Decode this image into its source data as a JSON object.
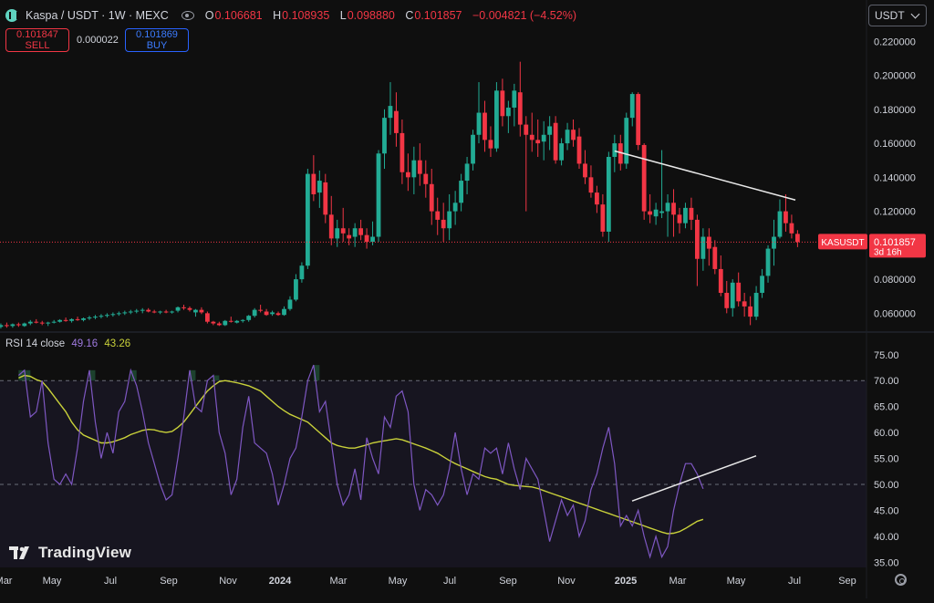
{
  "header": {
    "symbol_line": "Kaspa / USDT · 1W · MEXC",
    "ohlc": [
      {
        "k": "O",
        "v": "0.106681"
      },
      {
        "k": "H",
        "v": "0.108935"
      },
      {
        "k": "L",
        "v": "0.098880"
      },
      {
        "k": "C",
        "v": "0.101857"
      },
      {
        "k": "",
        "v": "−0.004821 (−4.52%)"
      }
    ]
  },
  "trade": {
    "sell_price": "0.101847",
    "sell_label": "SELL",
    "spread": "0.000022",
    "buy_price": "0.101869",
    "buy_label": "BUY"
  },
  "currency": {
    "label": "USDT"
  },
  "branding": "TradingView",
  "rsi_legend": {
    "name": "RSI 14 close",
    "value1": "49.16",
    "value2": "43.26"
  },
  "colors": {
    "up": "#22ab94",
    "down": "#f23645",
    "rsi": "#7e57c2",
    "rsi_ma": "#c9d13a",
    "price_line": "#f23645"
  },
  "chart_data": [
    {
      "type": "candlestick",
      "title": "Kaspa / USDT · 1W · MEXC",
      "y_axis": {
        "ticks": [
          "0.220000",
          "0.200000",
          "0.180000",
          "0.160000",
          "0.140000",
          "0.120000",
          "0.100000",
          "0.080000",
          "0.060000"
        ],
        "range": [
          0.05,
          0.225
        ],
        "scale": "linear",
        "side": "right"
      },
      "x_axis": {
        "ticks": [
          "Mar",
          "May",
          "Jul",
          "Sep",
          "Nov",
          "2024",
          "Mar",
          "May",
          "Jul",
          "Sep",
          "Nov",
          "2025",
          "Mar",
          "May",
          "Jul",
          "Sep"
        ]
      },
      "last_price": {
        "symbol": "KASUSDT",
        "value": "0.101857",
        "countdown": "3d 16h",
        "numeric": 0.101857
      },
      "candles_ohlc": [
        [
          0.0535,
          0.0555,
          0.0525,
          0.0545
        ],
        [
          0.0548,
          0.0555,
          0.05,
          0.052
        ],
        [
          0.052,
          0.054,
          0.051,
          0.053
        ],
        [
          0.053,
          0.0545,
          0.0515,
          0.0525
        ],
        [
          0.0525,
          0.054,
          0.0515,
          0.0535
        ],
        [
          0.0535,
          0.0545,
          0.052,
          0.053
        ],
        [
          0.0525,
          0.0545,
          0.052,
          0.054
        ],
        [
          0.054,
          0.056,
          0.053,
          0.055
        ],
        [
          0.055,
          0.0565,
          0.054,
          0.0545
        ],
        [
          0.0545,
          0.0555,
          0.053,
          0.054
        ],
        [
          0.054,
          0.055,
          0.0525,
          0.0545
        ],
        [
          0.0545,
          0.056,
          0.054,
          0.055
        ],
        [
          0.055,
          0.0565,
          0.0545,
          0.056
        ],
        [
          0.056,
          0.0575,
          0.055,
          0.0555
        ],
        [
          0.0555,
          0.057,
          0.0545,
          0.0565
        ],
        [
          0.0565,
          0.058,
          0.0555,
          0.056
        ],
        [
          0.056,
          0.0575,
          0.0552,
          0.057
        ],
        [
          0.057,
          0.0585,
          0.056,
          0.0575
        ],
        [
          0.0575,
          0.059,
          0.0565,
          0.058
        ],
        [
          0.058,
          0.0595,
          0.057,
          0.0585
        ],
        [
          0.0585,
          0.06,
          0.0575,
          0.059
        ],
        [
          0.059,
          0.0605,
          0.058,
          0.0595
        ],
        [
          0.0595,
          0.061,
          0.0585,
          0.06
        ],
        [
          0.06,
          0.0615,
          0.059,
          0.0605
        ],
        [
          0.0605,
          0.062,
          0.0595,
          0.061
        ],
        [
          0.061,
          0.0625,
          0.06,
          0.0615
        ],
        [
          0.0615,
          0.063,
          0.06,
          0.062
        ],
        [
          0.062,
          0.063,
          0.0605,
          0.061
        ],
        [
          0.061,
          0.062,
          0.06,
          0.0605
        ],
        [
          0.0605,
          0.0615,
          0.0595,
          0.061
        ],
        [
          0.061,
          0.062,
          0.06,
          0.0605
        ],
        [
          0.0605,
          0.0615,
          0.0598,
          0.061
        ],
        [
          0.0615,
          0.064,
          0.0605,
          0.0635
        ],
        [
          0.0635,
          0.065,
          0.062,
          0.063
        ],
        [
          0.063,
          0.064,
          0.061,
          0.062
        ],
        [
          0.0605,
          0.0625,
          0.058,
          0.062
        ],
        [
          0.062,
          0.0635,
          0.0595,
          0.0605
        ],
        [
          0.06,
          0.061,
          0.054,
          0.055
        ],
        [
          0.055,
          0.0555,
          0.053,
          0.054
        ],
        [
          0.054,
          0.055,
          0.0525,
          0.053
        ],
        [
          0.053,
          0.056,
          0.0525,
          0.0555
        ],
        [
          0.0555,
          0.058,
          0.0545,
          0.055
        ],
        [
          0.0545,
          0.056,
          0.054,
          0.0555
        ],
        [
          0.0555,
          0.0565,
          0.0545,
          0.056
        ],
        [
          0.056,
          0.059,
          0.055,
          0.0585
        ],
        [
          0.0585,
          0.063,
          0.0575,
          0.062
        ],
        [
          0.062,
          0.065,
          0.0605,
          0.0615
        ],
        [
          0.061,
          0.0625,
          0.0585,
          0.059
        ],
        [
          0.0595,
          0.0615,
          0.0585,
          0.0605
        ],
        [
          0.06,
          0.061,
          0.0585,
          0.059
        ],
        [
          0.059,
          0.064,
          0.0585,
          0.0625
        ],
        [
          0.0625,
          0.07,
          0.0615,
          0.068
        ],
        [
          0.068,
          0.083,
          0.067,
          0.08
        ],
        [
          0.08,
          0.09,
          0.078,
          0.088
        ],
        [
          0.088,
          0.145,
          0.086,
          0.142
        ],
        [
          0.142,
          0.153,
          0.126,
          0.13
        ],
        [
          0.131,
          0.144,
          0.122,
          0.138
        ],
        [
          0.137,
          0.142,
          0.113,
          0.118
        ],
        [
          0.118,
          0.129,
          0.1,
          0.104
        ],
        [
          0.104,
          0.115,
          0.099,
          0.11
        ],
        [
          0.11,
          0.122,
          0.102,
          0.107
        ],
        [
          0.106,
          0.11,
          0.1,
          0.104
        ],
        [
          0.105,
          0.113,
          0.099,
          0.11
        ],
        [
          0.11,
          0.115,
          0.103,
          0.106
        ],
        [
          0.106,
          0.11,
          0.098,
          0.102
        ],
        [
          0.102,
          0.114,
          0.1,
          0.105
        ],
        [
          0.105,
          0.156,
          0.102,
          0.154
        ],
        [
          0.154,
          0.18,
          0.145,
          0.175
        ],
        [
          0.175,
          0.196,
          0.165,
          0.182
        ],
        [
          0.179,
          0.19,
          0.158,
          0.166
        ],
        [
          0.166,
          0.174,
          0.136,
          0.143
        ],
        [
          0.143,
          0.154,
          0.132,
          0.14
        ],
        [
          0.14,
          0.158,
          0.13,
          0.15
        ],
        [
          0.15,
          0.16,
          0.135,
          0.142
        ],
        [
          0.142,
          0.15,
          0.128,
          0.136
        ],
        [
          0.136,
          0.145,
          0.112,
          0.12
        ],
        [
          0.12,
          0.128,
          0.106,
          0.115
        ],
        [
          0.115,
          0.125,
          0.102,
          0.11
        ],
        [
          0.11,
          0.13,
          0.103,
          0.12
        ],
        [
          0.12,
          0.132,
          0.112,
          0.125
        ],
        [
          0.125,
          0.142,
          0.12,
          0.138
        ],
        [
          0.138,
          0.152,
          0.13,
          0.148
        ],
        [
          0.148,
          0.168,
          0.144,
          0.165
        ],
        [
          0.165,
          0.196,
          0.16,
          0.178
        ],
        [
          0.178,
          0.185,
          0.155,
          0.162
        ],
        [
          0.162,
          0.17,
          0.152,
          0.157
        ],
        [
          0.157,
          0.196,
          0.155,
          0.191
        ],
        [
          0.191,
          0.198,
          0.17,
          0.176
        ],
        [
          0.176,
          0.185,
          0.166,
          0.181
        ],
        [
          0.181,
          0.195,
          0.17,
          0.191
        ],
        [
          0.19,
          0.208,
          0.164,
          0.171
        ],
        [
          0.171,
          0.176,
          0.12,
          0.165
        ],
        [
          0.165,
          0.178,
          0.155,
          0.162
        ],
        [
          0.162,
          0.174,
          0.152,
          0.16
        ],
        [
          0.161,
          0.173,
          0.15,
          0.165
        ],
        [
          0.165,
          0.176,
          0.156,
          0.17
        ],
        [
          0.172,
          0.176,
          0.148,
          0.15
        ],
        [
          0.15,
          0.163,
          0.147,
          0.16
        ],
        [
          0.16,
          0.172,
          0.156,
          0.168
        ],
        [
          0.168,
          0.174,
          0.158,
          0.162
        ],
        [
          0.164,
          0.169,
          0.145,
          0.148
        ],
        [
          0.148,
          0.156,
          0.136,
          0.14
        ],
        [
          0.14,
          0.147,
          0.128,
          0.131
        ],
        [
          0.131,
          0.135,
          0.119,
          0.124
        ],
        [
          0.124,
          0.13,
          0.105,
          0.108
        ],
        [
          0.108,
          0.155,
          0.102,
          0.152
        ],
        [
          0.152,
          0.165,
          0.143,
          0.16
        ],
        [
          0.16,
          0.165,
          0.144,
          0.148
        ],
        [
          0.148,
          0.178,
          0.145,
          0.175
        ],
        [
          0.175,
          0.19,
          0.17,
          0.189
        ],
        [
          0.189,
          0.19,
          0.156,
          0.159
        ],
        [
          0.159,
          0.16,
          0.115,
          0.12
        ],
        [
          0.12,
          0.13,
          0.113,
          0.118
        ],
        [
          0.117,
          0.125,
          0.112,
          0.121
        ],
        [
          0.119,
          0.156,
          0.116,
          0.12
        ],
        [
          0.12,
          0.13,
          0.105,
          0.125
        ],
        [
          0.125,
          0.133,
          0.105,
          0.118
        ],
        [
          0.118,
          0.122,
          0.107,
          0.113
        ],
        [
          0.113,
          0.125,
          0.11,
          0.122
        ],
        [
          0.122,
          0.128,
          0.109,
          0.115
        ],
        [
          0.115,
          0.118,
          0.076,
          0.092
        ],
        [
          0.092,
          0.11,
          0.085,
          0.105
        ],
        [
          0.105,
          0.11,
          0.088,
          0.098
        ],
        [
          0.099,
          0.103,
          0.083,
          0.086
        ],
        [
          0.086,
          0.094,
          0.07,
          0.072
        ],
        [
          0.072,
          0.079,
          0.06,
          0.063
        ],
        [
          0.063,
          0.08,
          0.058,
          0.078
        ],
        [
          0.078,
          0.084,
          0.064,
          0.067
        ],
        [
          0.067,
          0.072,
          0.058,
          0.064
        ],
        [
          0.064,
          0.07,
          0.053,
          0.058
        ],
        [
          0.058,
          0.076,
          0.056,
          0.072
        ],
        [
          0.072,
          0.086,
          0.069,
          0.082
        ],
        [
          0.082,
          0.1,
          0.078,
          0.098
        ],
        [
          0.098,
          0.115,
          0.088,
          0.105
        ],
        [
          0.105,
          0.127,
          0.104,
          0.12
        ],
        [
          0.12,
          0.13,
          0.108,
          0.113
        ],
        [
          0.113,
          0.118,
          0.104,
          0.107
        ],
        [
          0.1067,
          0.1089,
          0.0989,
          0.1019
        ]
      ],
      "trendline": {
        "from": {
          "candle": 106,
          "price": 0.1555
        },
        "to": {
          "candle": 132,
          "price": 0.125
        }
      }
    },
    {
      "type": "line",
      "title": "RSI 14 close",
      "y_axis": {
        "ticks": [
          "75.00",
          "70.00",
          "65.00",
          "60.00",
          "55.00",
          "50.00",
          "45.00",
          "40.00",
          "35.00"
        ],
        "range": [
          34,
          79
        ]
      },
      "bands": {
        "upper": 70,
        "lower": 30,
        "middle": 50
      },
      "series": [
        {
          "name": "RSI",
          "values": [
            71,
            72,
            63,
            64,
            70,
            58,
            51,
            50,
            52,
            50,
            57,
            66,
            72,
            62,
            55,
            60,
            56,
            64,
            66,
            72,
            69,
            64,
            58,
            54,
            50,
            47,
            48,
            55,
            63,
            72,
            65,
            64,
            70,
            71,
            60,
            56,
            48,
            51,
            61,
            67,
            58,
            57,
            56,
            52,
            46,
            50,
            55,
            57,
            63,
            70,
            73,
            64,
            66,
            58,
            50,
            46,
            48,
            53,
            47,
            59,
            55,
            52,
            63,
            61,
            67,
            68,
            64,
            50,
            45,
            49,
            48,
            46,
            48,
            53,
            60,
            53,
            48,
            52,
            51,
            57,
            56,
            57,
            52,
            58,
            53,
            49,
            55,
            53,
            51,
            45,
            39,
            43,
            47,
            44,
            46,
            40,
            43,
            49,
            52,
            57,
            61,
            54,
            42,
            44,
            42,
            45,
            40,
            36,
            40,
            36,
            38,
            45,
            50,
            54,
            54,
            52,
            49.16
          ]
        },
        {
          "name": "RSI MA",
          "values": [
            70.5,
            71,
            70.8,
            70.2,
            69.8,
            68.5,
            67,
            65.5,
            64,
            62,
            60.5,
            59.5,
            59,
            58.5,
            58,
            58,
            58.2,
            58.6,
            59,
            59.6,
            60,
            60.4,
            60.6,
            60.5,
            60.2,
            60,
            60.2,
            61,
            62,
            63.5,
            65,
            66.5,
            68,
            69,
            69.8,
            70,
            69.8,
            69.6,
            69.3,
            69,
            68.5,
            68,
            67,
            66,
            65,
            64.2,
            63.5,
            63,
            62.5,
            62,
            61,
            60,
            59,
            58,
            57.5,
            57.2,
            57,
            57,
            57.3,
            57.6,
            58,
            58.2,
            58.4,
            58.6,
            58.8,
            58.6,
            58.2,
            57.8,
            57.4,
            57,
            56.5,
            56,
            55.3,
            54.6,
            54,
            53.5,
            53,
            52.5,
            52,
            51.5,
            51.2,
            51,
            50.5,
            50,
            49.8,
            49.7,
            49.6,
            49.5,
            49.2,
            48.8,
            48.4,
            48,
            47.6,
            47.2,
            46.8,
            46.4,
            46,
            45.6,
            45.2,
            44.8,
            44.4,
            44,
            43.6,
            43.2,
            42.8,
            42.4,
            42,
            41.6,
            41.2,
            40.8,
            40.5,
            40.6,
            40.9,
            41.5,
            42.2,
            42.9,
            43.26
          ]
        }
      ],
      "trendline": {
        "from": {
          "index": 1,
          "rsi": 46.8
        },
        "to": {
          "index": 0,
          "rsi": 55.5
        }
      }
    }
  ]
}
